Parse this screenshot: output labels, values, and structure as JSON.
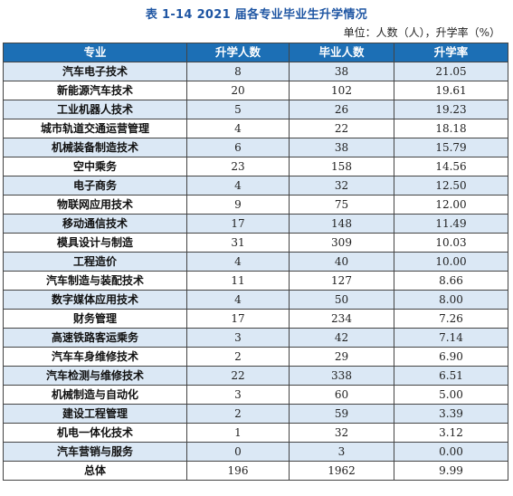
{
  "title": "表 1-14 2021 届各专业毕业生升学情况",
  "unit": "单位：人数（人），升学率（%）",
  "headers": [
    "专业",
    "升学人数",
    "毕业人数",
    "升学率"
  ],
  "rows": [
    {
      "major": "汽车电子技术",
      "enrolled": "8",
      "graduates": "38",
      "rate": "21.05"
    },
    {
      "major": "新能源汽车技术",
      "enrolled": "20",
      "graduates": "102",
      "rate": "19.61"
    },
    {
      "major": "工业机器人技术",
      "enrolled": "5",
      "graduates": "26",
      "rate": "19.23"
    },
    {
      "major": "城市轨道交通运营管理",
      "enrolled": "4",
      "graduates": "22",
      "rate": "18.18"
    },
    {
      "major": "机械装备制造技术",
      "enrolled": "6",
      "graduates": "38",
      "rate": "15.79"
    },
    {
      "major": "空中乘务",
      "enrolled": "23",
      "graduates": "158",
      "rate": "14.56"
    },
    {
      "major": "电子商务",
      "enrolled": "4",
      "graduates": "32",
      "rate": "12.50"
    },
    {
      "major": "物联网应用技术",
      "enrolled": "9",
      "graduates": "75",
      "rate": "12.00"
    },
    {
      "major": "移动通信技术",
      "enrolled": "17",
      "graduates": "148",
      "rate": "11.49"
    },
    {
      "major": "模具设计与制造",
      "enrolled": "31",
      "graduates": "309",
      "rate": "10.03"
    },
    {
      "major": "工程造价",
      "enrolled": "4",
      "graduates": "40",
      "rate": "10.00"
    },
    {
      "major": "汽车制造与装配技术",
      "enrolled": "11",
      "graduates": "127",
      "rate": "8.66"
    },
    {
      "major": "数字媒体应用技术",
      "enrolled": "4",
      "graduates": "50",
      "rate": "8.00"
    },
    {
      "major": "财务管理",
      "enrolled": "17",
      "graduates": "234",
      "rate": "7.26"
    },
    {
      "major": "高速铁路客运乘务",
      "enrolled": "3",
      "graduates": "42",
      "rate": "7.14"
    },
    {
      "major": "汽车车身维修技术",
      "enrolled": "2",
      "graduates": "29",
      "rate": "6.90"
    },
    {
      "major": "汽车检测与维修技术",
      "enrolled": "22",
      "graduates": "338",
      "rate": "6.51"
    },
    {
      "major": "机械制造与自动化",
      "enrolled": "3",
      "graduates": "60",
      "rate": "5.00"
    },
    {
      "major": "建设工程管理",
      "enrolled": "2",
      "graduates": "59",
      "rate": "3.39"
    },
    {
      "major": "机电一体化技术",
      "enrolled": "1",
      "graduates": "32",
      "rate": "3.12"
    },
    {
      "major": "汽车营销与服务",
      "enrolled": "0",
      "graduates": "3",
      "rate": "0.00"
    },
    {
      "major": "总体",
      "enrolled": "196",
      "graduates": "1962",
      "rate": "9.99"
    }
  ],
  "colors": {
    "title": "#1f56a3",
    "header_bg": "#1c6fb5",
    "stripe": "#dbe8f5"
  }
}
